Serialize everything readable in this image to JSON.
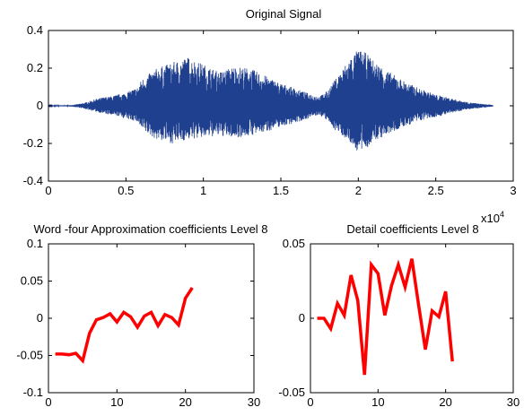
{
  "chart_data": [
    {
      "type": "line",
      "title": "Original Signal",
      "xlabel": "",
      "ylabel": "",
      "xlim": [
        0,
        3
      ],
      "ylim": [
        -0.4,
        0.4
      ],
      "x_ticks": [
        "0",
        "0.5",
        "1",
        "1.5",
        "2",
        "2.5",
        "3"
      ],
      "y_ticks": [
        "-0.4",
        "-0.2",
        "0",
        "0.2",
        "0.4"
      ],
      "x_multiplier": "x10",
      "x_multiplier_exp": "4",
      "color": "#1f3f8f",
      "envelope": {
        "x": [
          0,
          0.15,
          0.2,
          0.25,
          0.3,
          0.35,
          0.4,
          0.45,
          0.5,
          0.55,
          0.58,
          0.6,
          0.7,
          0.8,
          0.9,
          1.0,
          1.1,
          1.2,
          1.3,
          1.4,
          1.5,
          1.6,
          1.7,
          1.75,
          1.8,
          1.85,
          1.9,
          1.95,
          2.0,
          2.05,
          2.1,
          2.2,
          2.3,
          2.4,
          2.5,
          2.6,
          2.7,
          2.8,
          2.85,
          2.87,
          3.0
        ],
        "upper": [
          0.002,
          0.004,
          0.01,
          0.02,
          0.035,
          0.045,
          0.05,
          0.06,
          0.07,
          0.09,
          0.1,
          0.14,
          0.2,
          0.23,
          0.26,
          0.22,
          0.18,
          0.21,
          0.2,
          0.16,
          0.12,
          0.09,
          0.06,
          0.05,
          0.08,
          0.14,
          0.2,
          0.26,
          0.3,
          0.28,
          0.24,
          0.18,
          0.13,
          0.09,
          0.06,
          0.04,
          0.02,
          0.01,
          0.006,
          0.003,
          0.002
        ],
        "lower": [
          -0.002,
          -0.004,
          -0.01,
          -0.02,
          -0.03,
          -0.04,
          -0.05,
          -0.055,
          -0.07,
          -0.08,
          -0.09,
          -0.13,
          -0.18,
          -0.2,
          -0.18,
          -0.17,
          -0.16,
          -0.17,
          -0.16,
          -0.14,
          -0.11,
          -0.09,
          -0.06,
          -0.05,
          -0.08,
          -0.13,
          -0.16,
          -0.2,
          -0.25,
          -0.23,
          -0.19,
          -0.15,
          -0.11,
          -0.08,
          -0.06,
          -0.04,
          -0.02,
          -0.01,
          -0.006,
          -0.003,
          -0.002
        ]
      }
    },
    {
      "type": "line",
      "title": "Word -four Approximation coefficients Level 8",
      "xlabel": "",
      "ylabel": "",
      "xlim": [
        0,
        30
      ],
      "ylim": [
        -0.1,
        0.1
      ],
      "x_ticks": [
        "0",
        "10",
        "20",
        "30"
      ],
      "y_ticks": [
        "-0.1",
        "-0.05",
        "0",
        "0.05",
        "0.1"
      ],
      "color": "#ff0000",
      "x": [
        1,
        2,
        3,
        4,
        5,
        6,
        7,
        8,
        9,
        10,
        11,
        12,
        13,
        14,
        15,
        16,
        17,
        18,
        19,
        20,
        21
      ],
      "y": [
        -0.048,
        -0.048,
        -0.049,
        -0.047,
        -0.057,
        -0.02,
        -0.002,
        0.001,
        0.006,
        -0.005,
        0.008,
        0.002,
        -0.012,
        0.003,
        0.008,
        -0.01,
        0.005,
        0.001,
        -0.009,
        0.027,
        0.041
      ]
    },
    {
      "type": "line",
      "title": "Detail coefficients Level 8",
      "xlabel": "",
      "ylabel": "",
      "xlim": [
        0,
        30
      ],
      "ylim": [
        -0.05,
        0.05
      ],
      "x_ticks": [
        "0",
        "10",
        "20",
        "30"
      ],
      "y_ticks": [
        "-0.05",
        "0",
        "0.05"
      ],
      "color": "#ff0000",
      "x": [
        1,
        2,
        3,
        4,
        5,
        6,
        7,
        8,
        9,
        10,
        11,
        12,
        13,
        14,
        15,
        16,
        17,
        18,
        19,
        20,
        21
      ],
      "y": [
        0.0,
        0.0,
        -0.007,
        0.01,
        0.002,
        0.029,
        0.012,
        -0.038,
        0.036,
        0.03,
        0.002,
        0.022,
        0.036,
        0.021,
        0.04,
        0.009,
        -0.021,
        0.005,
        0.001,
        0.018,
        -0.029
      ]
    }
  ]
}
